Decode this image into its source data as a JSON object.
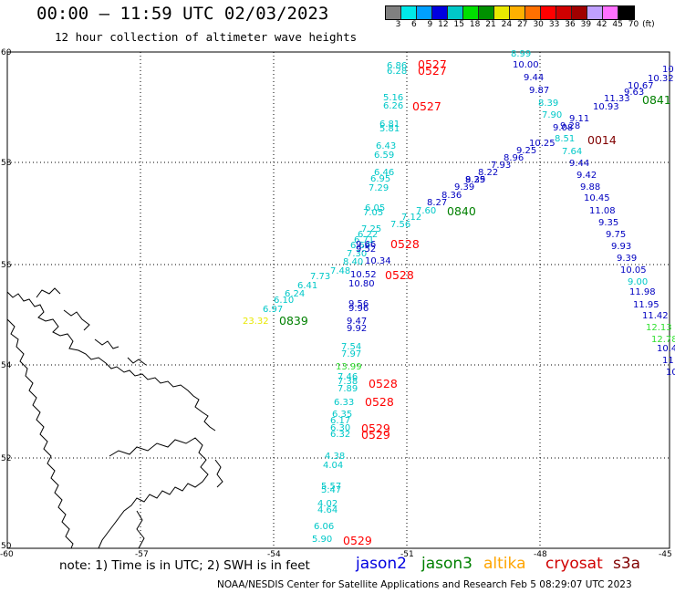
{
  "title": "00:00 – 11:59 UTC 02/03/2023",
  "subtitle": "12 hour collection of altimeter wave heights",
  "colorbar": {
    "labels": [
      "3",
      "6",
      "9",
      "12",
      "15",
      "18",
      "21",
      "24",
      "27",
      "30",
      "33",
      "36",
      "39",
      "42",
      "45",
      "70",
      "(ft)"
    ],
    "colors": [
      "#808080",
      "#00e8e8",
      "#00a0ff",
      "#0000e0",
      "#00c8c8",
      "#00e000",
      "#009000",
      "#e8e800",
      "#ffb000",
      "#ff7000",
      "#ff0000",
      "#d00000",
      "#a00000",
      "#c0a0ff",
      "#ff70ff",
      "#000000"
    ]
  },
  "axes": {
    "lat_labels": [
      "60",
      "58",
      "56",
      "54",
      "52",
      "50"
    ],
    "lon_labels": [
      "-60",
      "-57",
      "-54",
      "-51",
      "-48",
      "-45"
    ]
  },
  "colors": {
    "cyan": "#00c8c8",
    "blue": "#0000c0",
    "red": "#ff0000",
    "green": "#008000",
    "darkred": "#800000",
    "yellow": "#e8e800",
    "lightgreen": "#30e030"
  },
  "tracks": [
    {
      "color": "cyan",
      "values": [
        "6.86",
        "6.28",
        "5.16",
        "6.26",
        "6.81",
        "5.81",
        "6.43",
        "6.59",
        "6.46",
        "6.95",
        "7.29",
        "6.05",
        "7.05",
        "7.25",
        "6.22",
        "6.71",
        "6.64",
        "7.30",
        "8.40",
        "7.73",
        "7.48",
        "6.41",
        "6.24",
        "6.10",
        "6.97",
        "7.56",
        "7.12",
        "7.60",
        "7.54",
        "7.97",
        "13.99",
        "7.46",
        "7.38",
        "7.89",
        "6.33",
        "6.35",
        "6.17",
        "6.30",
        "6.32",
        "4.38",
        "4.04",
        "5.57",
        "5.47",
        "4.02",
        "4.64",
        "6.06",
        "5.90"
      ]
    },
    {
      "color": "blue",
      "values": [
        "9.66",
        "9.52",
        "10.34",
        "10.52",
        "10.80",
        "9.56",
        "9.96",
        "9.47",
        "9.92",
        "10.00",
        "9.44",
        "9.87",
        "10.25",
        "9.25",
        "9.39",
        "10.45",
        "11.08",
        "9.35",
        "9.75",
        "9.93",
        "9.39",
        "10.05",
        "11.98",
        "11.95",
        "11.42",
        "10.4",
        "9.42",
        "9.88",
        "9.44",
        "9.11",
        "10.93",
        "11.33",
        "9.63",
        "10.67",
        "10.32",
        "10",
        "8.36",
        "8.27",
        "9.39",
        "8.25",
        "8.22",
        "7.93",
        "8.96",
        "9.08",
        "9.28"
      ]
    },
    {
      "color": "cyan2",
      "values": [
        "8.99",
        "8.39",
        "7.90",
        "8.51",
        "7.64",
        "9.00"
      ]
    }
  ],
  "passes": [
    "0527",
    "0527",
    "0527",
    "0528",
    "0528",
    "0528",
    "0528",
    "0529",
    "0529",
    "0529",
    "0840",
    "0841",
    "0839",
    "0014"
  ],
  "note": "note: 1) Time is in UTC; 2) SWH is in feet",
  "legend": {
    "jason2": "jason2",
    "jason3": "jason3",
    "altika": "altika",
    "cryosat": "cryosat",
    "s3a": "s3a"
  },
  "footer": "NOAA/NESDIS Center for Satellite Applications and Research    Feb  5 08:29:07 UTC 2023"
}
